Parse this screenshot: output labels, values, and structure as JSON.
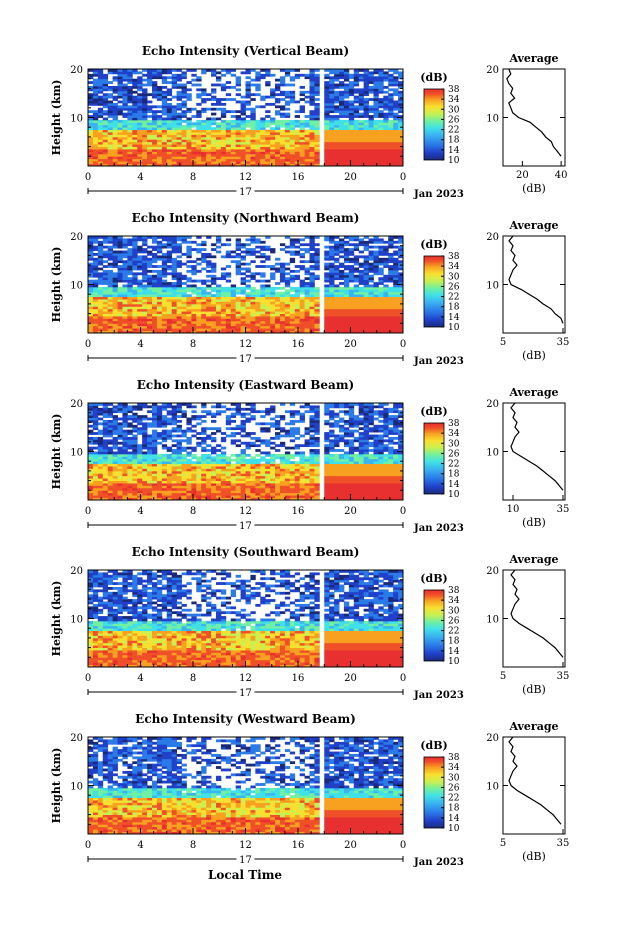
{
  "figure": {
    "xlabel": "Local Time",
    "date_label": "Jan 2023",
    "day_label": "17",
    "ylabel": "Height (km)",
    "colorbar_unit": "(dB)",
    "avg_title": "Average",
    "avg_xlabel": "(dB)"
  },
  "colormap": [
    "#1a2a7a",
    "#2040c8",
    "#2a7ae8",
    "#3ab4f0",
    "#40e0e8",
    "#70f0a0",
    "#c8f050",
    "#f8e030",
    "#f8a020",
    "#f05028",
    "#e83030"
  ],
  "chart_data": [
    {
      "type": "heatmap",
      "title": "Echo Intensity (Vertical Beam)",
      "x_range": [
        0,
        24
      ],
      "x_ticks": [
        "0",
        "4",
        "8",
        "12",
        "16",
        "20",
        "0"
      ],
      "y_range": [
        0,
        20
      ],
      "y_ticks": [
        "10",
        "20"
      ],
      "colorbar_range": [
        10,
        38
      ],
      "colorbar_ticks": [
        "10",
        "14",
        "18",
        "22",
        "26",
        "30",
        "34",
        "38"
      ],
      "average_profile": {
        "xlim": [
          10,
          42
        ],
        "x_ticks": [
          "20",
          "40"
        ],
        "height_km": [
          2,
          3,
          4,
          5,
          6,
          7,
          8,
          9,
          10,
          11,
          12,
          13,
          14,
          15,
          16,
          17,
          18,
          19,
          20
        ],
        "db": [
          40,
          38,
          36,
          35,
          32,
          30,
          27,
          24,
          18,
          15,
          14,
          13,
          16,
          14,
          15,
          13,
          12,
          14,
          13
        ]
      }
    },
    {
      "type": "heatmap",
      "title": "Echo Intensity (Northward Beam)",
      "x_range": [
        0,
        24
      ],
      "x_ticks": [
        "0",
        "4",
        "8",
        "12",
        "16",
        "20",
        "0"
      ],
      "y_range": [
        0,
        20
      ],
      "y_ticks": [
        "10",
        "20"
      ],
      "colorbar_range": [
        10,
        38
      ],
      "colorbar_ticks": [
        "10",
        "14",
        "18",
        "22",
        "26",
        "30",
        "34",
        "38"
      ],
      "average_profile": {
        "xlim": [
          5,
          36
        ],
        "x_ticks": [
          "5",
          "35"
        ],
        "height_km": [
          2,
          3,
          4,
          5,
          6,
          7,
          8,
          9,
          10,
          11,
          12,
          13,
          14,
          15,
          16,
          17,
          18,
          19,
          20
        ],
        "db": [
          35,
          34,
          31,
          29,
          25,
          22,
          18,
          14,
          9,
          8,
          9,
          10,
          12,
          10,
          11,
          9,
          10,
          8,
          10
        ]
      }
    },
    {
      "type": "heatmap",
      "title": "Echo Intensity (Eastward Beam)",
      "x_range": [
        0,
        24
      ],
      "x_ticks": [
        "0",
        "4",
        "8",
        "12",
        "16",
        "20",
        "0"
      ],
      "y_range": [
        0,
        20
      ],
      "y_ticks": [
        "10",
        "20"
      ],
      "colorbar_range": [
        10,
        38
      ],
      "colorbar_ticks": [
        "10",
        "14",
        "18",
        "22",
        "26",
        "30",
        "34",
        "38"
      ],
      "average_profile": {
        "xlim": [
          5,
          36
        ],
        "x_ticks": [
          "10",
          "35"
        ],
        "height_km": [
          2,
          3,
          4,
          5,
          6,
          7,
          8,
          9,
          10,
          11,
          12,
          13,
          14,
          15,
          16,
          17,
          18,
          19,
          20
        ],
        "db": [
          35,
          33,
          31,
          28,
          25,
          22,
          18,
          14,
          10,
          9,
          10,
          11,
          13,
          11,
          12,
          10,
          11,
          9,
          11
        ]
      }
    },
    {
      "type": "heatmap",
      "title": "Echo Intensity (Southward Beam)",
      "x_range": [
        0,
        24
      ],
      "x_ticks": [
        "0",
        "4",
        "8",
        "12",
        "16",
        "20",
        "0"
      ],
      "y_range": [
        0,
        20
      ],
      "y_ticks": [
        "10",
        "20"
      ],
      "colorbar_range": [
        10,
        38
      ],
      "colorbar_ticks": [
        "10",
        "14",
        "18",
        "22",
        "26",
        "30",
        "34",
        "38"
      ],
      "average_profile": {
        "xlim": [
          5,
          36
        ],
        "x_ticks": [
          "5",
          "35"
        ],
        "height_km": [
          2,
          3,
          4,
          5,
          6,
          7,
          8,
          9,
          10,
          11,
          12,
          13,
          14,
          15,
          16,
          17,
          18,
          19,
          20
        ],
        "db": [
          35,
          33,
          31,
          28,
          25,
          21,
          17,
          13,
          10,
          9,
          10,
          11,
          13,
          11,
          12,
          10,
          11,
          9,
          11
        ]
      }
    },
    {
      "type": "heatmap",
      "title": "Echo Intensity (Westward Beam)",
      "x_range": [
        0,
        24
      ],
      "x_ticks": [
        "0",
        "4",
        "8",
        "12",
        "16",
        "20",
        "0"
      ],
      "y_range": [
        0,
        20
      ],
      "y_ticks": [
        "10",
        "20"
      ],
      "colorbar_range": [
        10,
        38
      ],
      "colorbar_ticks": [
        "10",
        "14",
        "18",
        "22",
        "26",
        "30",
        "34",
        "38"
      ],
      "average_profile": {
        "xlim": [
          5,
          36
        ],
        "x_ticks": [
          "5",
          "35"
        ],
        "height_km": [
          2,
          3,
          4,
          5,
          6,
          7,
          8,
          9,
          10,
          11,
          12,
          13,
          14,
          15,
          16,
          17,
          18,
          19,
          20
        ],
        "db": [
          34,
          32,
          30,
          27,
          24,
          20,
          16,
          12,
          9,
          8,
          9,
          10,
          12,
          10,
          11,
          9,
          10,
          8,
          10
        ]
      }
    }
  ]
}
